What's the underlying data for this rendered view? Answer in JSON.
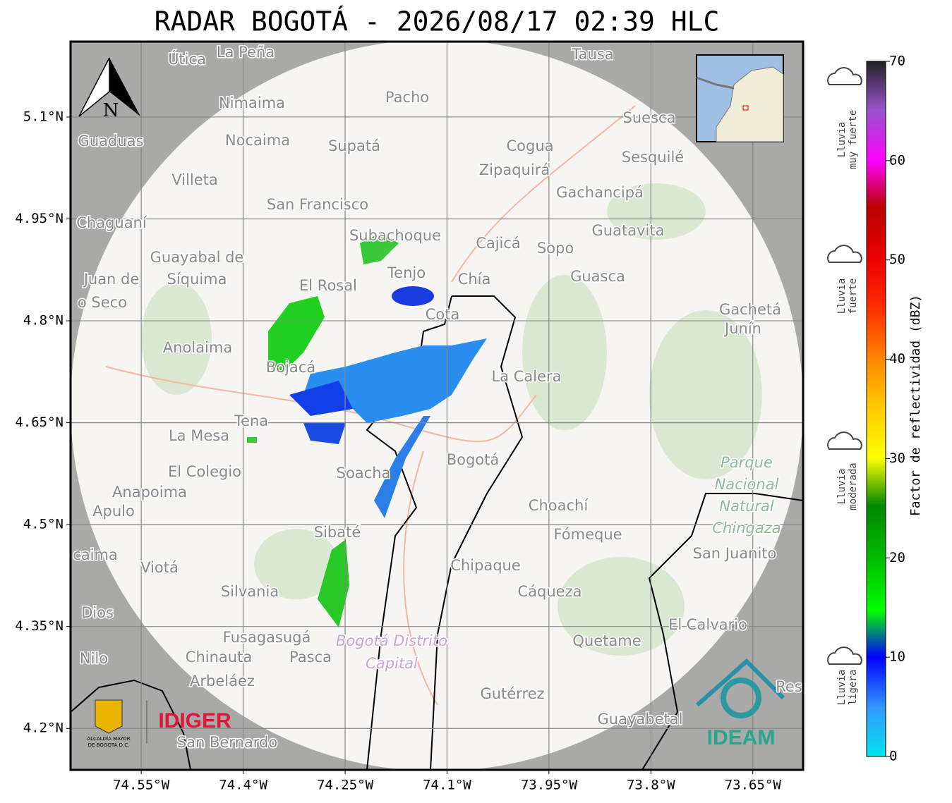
{
  "title": "RADAR BOGOTÁ - 2026/08/17 02:39 HLC",
  "map": {
    "xlim": [
      -74.654,
      -73.576
    ],
    "ylim": [
      4.139,
      5.211
    ],
    "xticks": [
      {
        "value": -74.55,
        "label": "74.55°W"
      },
      {
        "value": -74.4,
        "label": "74.4°W"
      },
      {
        "value": -74.25,
        "label": "74.25°W"
      },
      {
        "value": -74.1,
        "label": "74.1°W"
      },
      {
        "value": -73.95,
        "label": "73.95°W"
      },
      {
        "value": -73.8,
        "label": "73.8°W"
      },
      {
        "value": -73.65,
        "label": "73.65°W"
      }
    ],
    "yticks": [
      {
        "value": 5.1,
        "label": "5.1°N"
      },
      {
        "value": 4.95,
        "label": "4.95°N"
      },
      {
        "value": 4.8,
        "label": "4.8°N"
      },
      {
        "value": 4.65,
        "label": "4.65°N"
      },
      {
        "value": 4.5,
        "label": "4.5°N"
      },
      {
        "value": 4.35,
        "label": "4.35°N"
      },
      {
        "value": 4.2,
        "label": "4.2°N"
      }
    ],
    "grid": true,
    "north": "N",
    "places": [
      "La Peña",
      "Útica",
      "Tausa",
      "Pacho",
      "Nimaima",
      "Guaduas",
      "Nocaima",
      "Supatá",
      "Cogua",
      "Suesca",
      "Sesquilé",
      "Zipaquirá",
      "Villeta",
      "Gachancipá",
      "San Francisco",
      "Chaguaní",
      "Guatavita",
      "Subachoque",
      "Cajicá",
      "Sopo",
      "Guayabal de",
      "Síquima",
      "Juan de",
      "o Seco",
      "Tenjo",
      "Chía",
      "Guasca",
      "El Rosal",
      "Gachetá",
      "Junín",
      "Cota",
      "Anolaima",
      "Bojacá",
      "La Calera",
      "Tena",
      "La Mesa",
      "Bogotá",
      "El Colegio",
      "Soacha",
      "Anapoima",
      "Apulo",
      "Choachí",
      "Sibaté",
      "Fómeque",
      "San Juanito",
      "caima",
      "Viotá",
      "Chipaque",
      "Silvania",
      "Cáqueza",
      "Dios",
      "El Calvario",
      "Fusagasugá",
      "Quetame",
      "Nilo",
      "Chinauta",
      "Pasca",
      "Arbeláez",
      "Gutérrez",
      "Res",
      "Guayabetal",
      "San Bernardo"
    ],
    "park": [
      "Parque",
      "Nacional",
      "Natural",
      "Chingaza"
    ],
    "district": [
      "Bogotá Distrito",
      "Capital"
    ],
    "logos": {
      "alcaldia": [
        "ALCALDÍA MAYOR",
        "DE BOGOTÁ D.C."
      ],
      "idiger": "IDIGER",
      "ideam": "IDEAM"
    }
  },
  "colorbar": {
    "label": "Factor de reflectividad (dBZ)",
    "lim": [
      0,
      70
    ],
    "ticks": [
      0,
      10,
      20,
      30,
      40,
      50,
      60,
      70
    ],
    "categories": [
      [
        "Lluvia",
        "muy fuerte"
      ],
      [
        "Lluvia",
        "fuerte"
      ],
      [
        "Lluvia",
        "moderada"
      ],
      [
        "Lluvia",
        "ligera"
      ]
    ]
  }
}
